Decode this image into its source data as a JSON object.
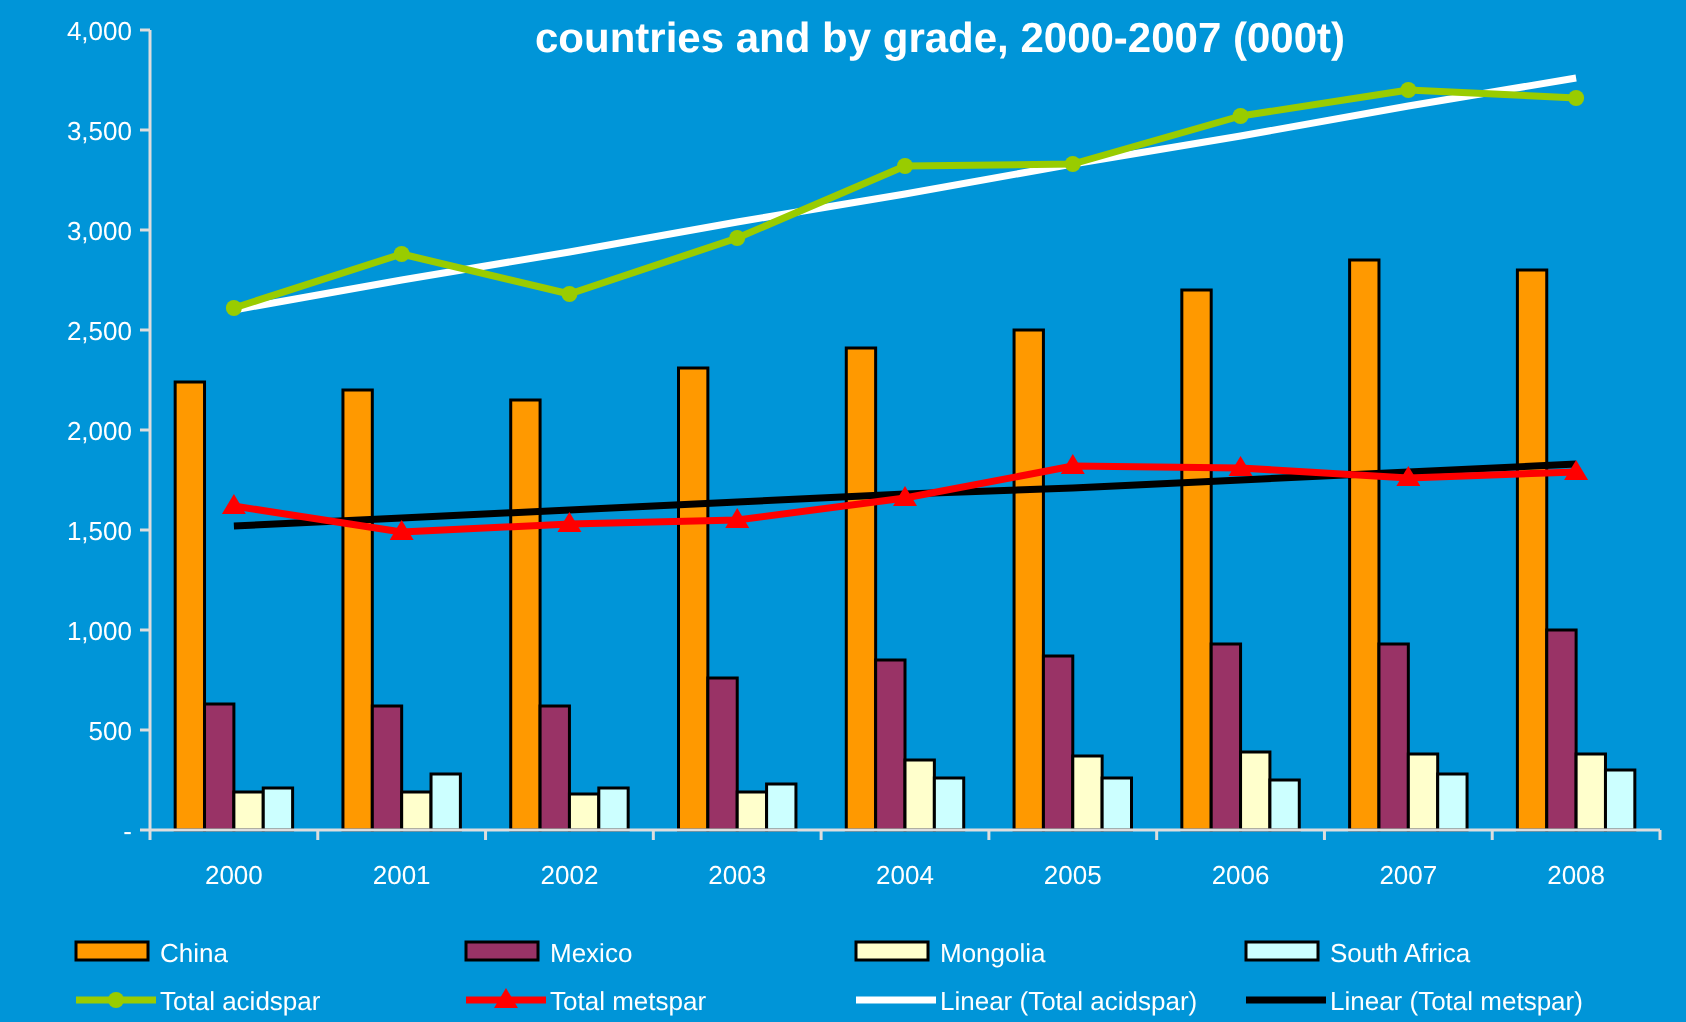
{
  "chart_data": {
    "type": "bar",
    "title": "countries and by grade, 2000-2007 (000t)",
    "categories": [
      "2000",
      "2001",
      "2002",
      "2003",
      "2004",
      "2005",
      "2006",
      "2007",
      "2008"
    ],
    "ylim": [
      0,
      4000
    ],
    "yticks": [
      {
        "value": 0,
        "label": "-"
      },
      {
        "value": 500,
        "label": "500"
      },
      {
        "value": 1000,
        "label": "1,000"
      },
      {
        "value": 1500,
        "label": "1,500"
      },
      {
        "value": 2000,
        "label": "2,000"
      },
      {
        "value": 2500,
        "label": "2,500"
      },
      {
        "value": 3000,
        "label": "3,000"
      },
      {
        "value": 3500,
        "label": "3,500"
      },
      {
        "value": 4000,
        "label": "4,000"
      }
    ],
    "grid": false,
    "legend": "bottom",
    "series": [
      {
        "name": "China",
        "color": "#ff9900",
        "values": [
          2240,
          2200,
          2150,
          2310,
          2410,
          2500,
          2700,
          2850,
          2800
        ]
      },
      {
        "name": "Mexico",
        "color": "#993366",
        "values": [
          630,
          620,
          620,
          760,
          850,
          870,
          930,
          930,
          1000
        ]
      },
      {
        "name": "Mongolia",
        "color": "#ffffcc",
        "values": [
          190,
          190,
          180,
          190,
          350,
          370,
          390,
          380,
          380
        ]
      },
      {
        "name": "South Africa",
        "color": "#ccffff",
        "values": [
          210,
          280,
          210,
          230,
          260,
          260,
          250,
          280,
          300
        ]
      },
      {
        "name": "Total acidspar",
        "type": "line",
        "color": "#99cc00",
        "marker": "circle",
        "values": [
          2610,
          2880,
          2680,
          2960,
          3320,
          3330,
          3570,
          3700,
          3660
        ]
      },
      {
        "name": "Total metspar",
        "type": "line",
        "color": "#ff0000",
        "marker": "triangle",
        "values": [
          1620,
          1490,
          1530,
          1550,
          1660,
          1820,
          1810,
          1760,
          1790
        ]
      },
      {
        "name": "Linear (Total acidspar)",
        "type": "line",
        "color": "#ffffff",
        "marker": "none",
        "values": [
          2600,
          2750,
          2890,
          3040,
          3180,
          3330,
          3470,
          3620,
          3760
        ]
      },
      {
        "name": "Linear (Total metspar)",
        "type": "line",
        "color": "#000000",
        "marker": "none",
        "values": [
          1520,
          1560,
          1600,
          1640,
          1680,
          1710,
          1750,
          1790,
          1830
        ]
      }
    ]
  }
}
